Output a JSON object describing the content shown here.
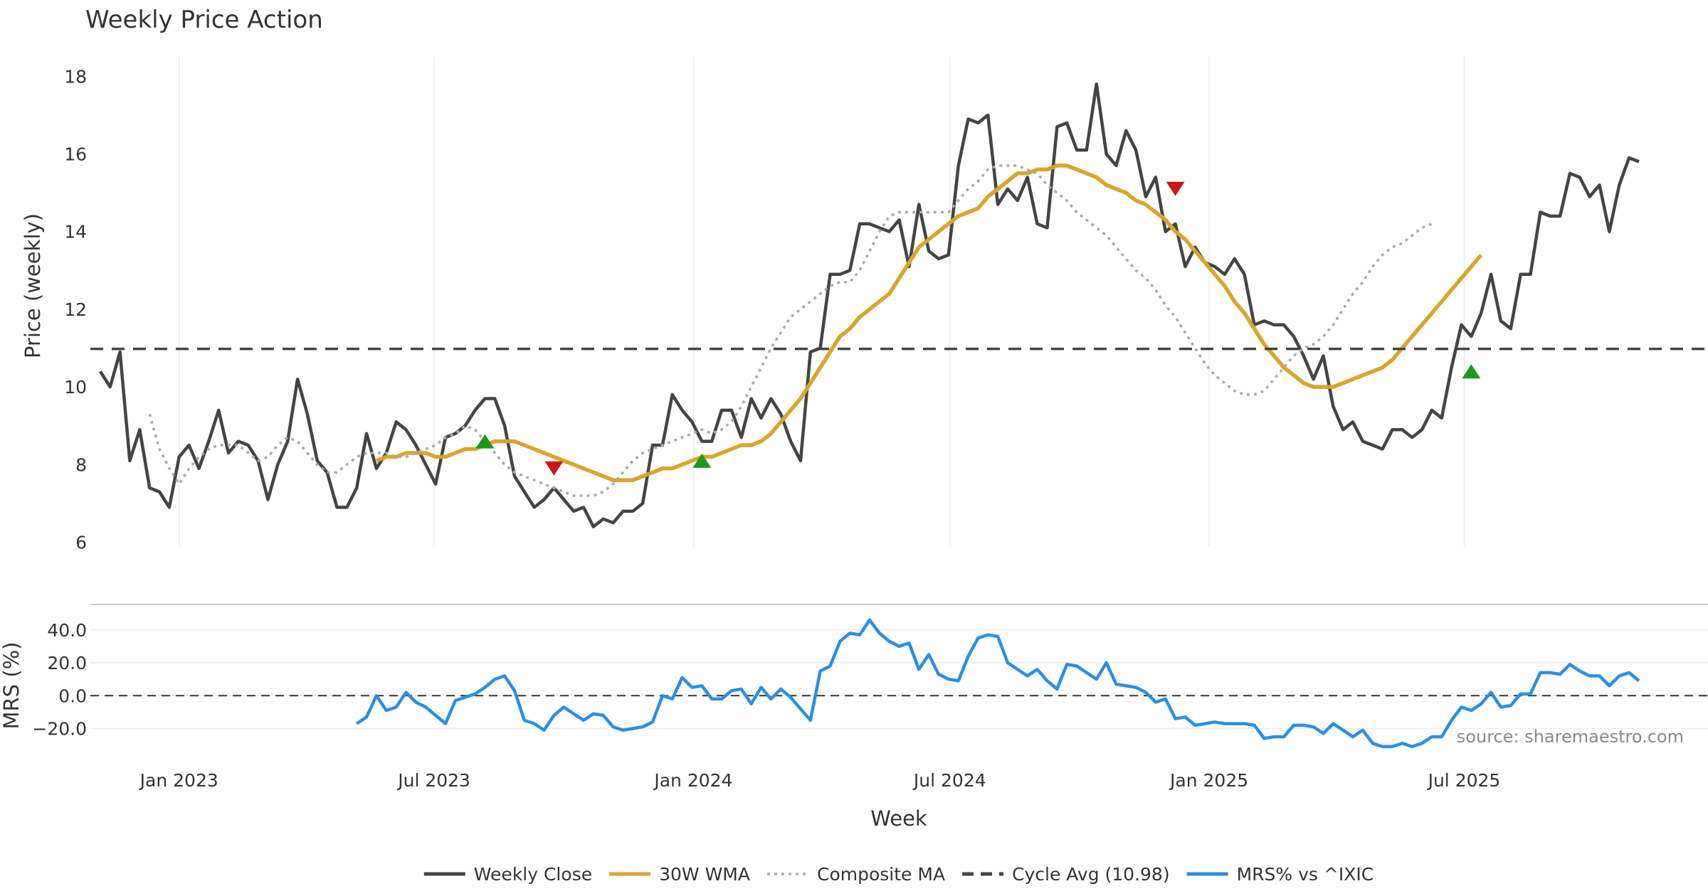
{
  "chart_data": {
    "title": "Weekly Price Action",
    "xlabel": "Week",
    "source": "source: sharemaestro.com",
    "x_ticks": [
      {
        "date": "2023-01-01",
        "label": "Jan 2023"
      },
      {
        "date": "2023-07-01",
        "label": "Jul 2023"
      },
      {
        "date": "2024-01-01",
        "label": "Jan 2024"
      },
      {
        "date": "2024-07-01",
        "label": "Jul 2024"
      },
      {
        "date": "2025-01-01",
        "label": "Jan 2025"
      },
      {
        "date": "2025-07-01",
        "label": "Jul 2025"
      }
    ],
    "x_range": [
      "2022-10-30",
      "2025-12-21"
    ],
    "price_panel": {
      "type": "line",
      "ylabel": "Price (weekly)",
      "ylim": [
        5.9,
        18.5
      ],
      "y_ticks": [
        6,
        8,
        10,
        12,
        14,
        16,
        18
      ],
      "grid": "x",
      "x": [
        "2022-11-06",
        "2022-11-13",
        "2022-11-20",
        "2022-11-27",
        "2022-12-04",
        "2022-12-11",
        "2022-12-18",
        "2022-12-25",
        "2023-01-01",
        "2023-01-08",
        "2023-01-15",
        "2023-01-22",
        "2023-01-29",
        "2023-02-05",
        "2023-02-12",
        "2023-02-19",
        "2023-02-26",
        "2023-03-05",
        "2023-03-12",
        "2023-03-19",
        "2023-03-26",
        "2023-04-02",
        "2023-04-09",
        "2023-04-16",
        "2023-04-23",
        "2023-04-30",
        "2023-05-07",
        "2023-05-14",
        "2023-05-21",
        "2023-05-28",
        "2023-06-04",
        "2023-06-11",
        "2023-06-18",
        "2023-06-25",
        "2023-07-02",
        "2023-07-09",
        "2023-07-16",
        "2023-07-23",
        "2023-07-30",
        "2023-08-06",
        "2023-08-13",
        "2023-08-20",
        "2023-08-27",
        "2023-09-03",
        "2023-09-10",
        "2023-09-17",
        "2023-09-24",
        "2023-10-01",
        "2023-10-08",
        "2023-10-15",
        "2023-10-22",
        "2023-10-29",
        "2023-11-05",
        "2023-11-12",
        "2023-11-19",
        "2023-11-26",
        "2023-12-03",
        "2023-12-10",
        "2023-12-17",
        "2023-12-24",
        "2023-12-31",
        "2024-01-07",
        "2024-01-14",
        "2024-01-21",
        "2024-01-28",
        "2024-02-04",
        "2024-02-11",
        "2024-02-18",
        "2024-02-25",
        "2024-03-03",
        "2024-03-10",
        "2024-03-17",
        "2024-03-24",
        "2024-03-31",
        "2024-04-07",
        "2024-04-14",
        "2024-04-21",
        "2024-04-28",
        "2024-05-05",
        "2024-05-12",
        "2024-05-19",
        "2024-05-26",
        "2024-06-02",
        "2024-06-09",
        "2024-06-16",
        "2024-06-23",
        "2024-06-30",
        "2024-07-07",
        "2024-07-14",
        "2024-07-21",
        "2024-07-28",
        "2024-08-04",
        "2024-08-11",
        "2024-08-18",
        "2024-08-25",
        "2024-09-01",
        "2024-09-08",
        "2024-09-15",
        "2024-09-22",
        "2024-09-29",
        "2024-10-06",
        "2024-10-13",
        "2024-10-20",
        "2024-10-27",
        "2024-11-03",
        "2024-11-10",
        "2024-11-17",
        "2024-11-24",
        "2024-12-01",
        "2024-12-08",
        "2024-12-15",
        "2024-12-22",
        "2024-12-29",
        "2025-01-05",
        "2025-01-12",
        "2025-01-19",
        "2025-01-26",
        "2025-02-02",
        "2025-02-09",
        "2025-02-16",
        "2025-02-23",
        "2025-03-02",
        "2025-03-09",
        "2025-03-16",
        "2025-03-23",
        "2025-03-30",
        "2025-04-06",
        "2025-04-13",
        "2025-04-20",
        "2025-04-27",
        "2025-05-04",
        "2025-05-11",
        "2025-05-18",
        "2025-05-25",
        "2025-06-01",
        "2025-06-08",
        "2025-06-15",
        "2025-06-22",
        "2025-06-29",
        "2025-07-06",
        "2025-07-13",
        "2025-07-20",
        "2025-07-27",
        "2025-08-03",
        "2025-08-10",
        "2025-08-17",
        "2025-08-24",
        "2025-08-31",
        "2025-09-07",
        "2025-09-14",
        "2025-09-21",
        "2025-09-28",
        "2025-10-05",
        "2025-10-12",
        "2025-10-19",
        "2025-10-26",
        "2025-11-02",
        "2025-11-09",
        "2025-11-16",
        "2025-11-23",
        "2025-11-30",
        "2025-12-07",
        "2025-12-14",
        "2025-12-21"
      ],
      "series": [
        {
          "name": "Weekly Close",
          "color": "#444444",
          "style": "solid",
          "values": [
            10.4,
            10.0,
            10.9,
            8.1,
            8.9,
            7.4,
            7.3,
            6.9,
            8.2,
            8.5,
            7.9,
            8.6,
            9.4,
            8.3,
            8.6,
            8.5,
            8.1,
            7.1,
            8.0,
            8.6,
            10.2,
            9.3,
            8.1,
            7.8,
            6.9,
            6.9,
            7.4,
            8.8,
            7.9,
            8.3,
            9.1,
            8.9,
            8.5,
            8.0,
            7.5,
            8.7,
            8.8,
            9.0,
            9.4,
            9.7,
            9.7,
            9.0,
            7.7,
            7.3,
            6.9,
            7.1,
            7.4,
            7.1,
            6.8,
            6.9,
            6.4,
            6.6,
            6.5,
            6.8,
            6.8,
            7.0,
            8.5,
            8.5,
            9.8,
            9.4,
            9.1,
            8.6,
            8.6,
            9.4,
            9.4,
            8.7,
            9.7,
            9.2,
            9.7,
            9.3,
            8.6,
            8.1,
            10.9,
            11.0,
            12.9,
            12.9,
            13.0,
            14.2,
            14.2,
            14.1,
            14.0,
            14.3,
            13.1,
            14.7,
            13.5,
            13.3,
            13.4,
            15.7,
            16.9,
            16.8,
            17.0,
            14.7,
            15.1,
            14.8,
            15.4,
            14.2,
            14.1,
            16.7,
            16.8,
            16.1,
            16.1,
            17.8,
            16.0,
            15.7,
            16.6,
            16.1,
            14.9,
            15.4,
            14.0,
            14.2,
            13.1,
            13.6,
            13.2,
            13.1,
            12.9,
            13.3,
            12.9,
            11.6,
            11.7,
            11.6,
            11.6,
            11.3,
            10.8,
            10.2,
            10.8,
            9.5,
            8.9,
            9.1,
            8.6,
            8.5,
            8.4,
            8.9,
            8.9,
            8.7,
            8.9,
            9.4,
            9.2,
            10.5,
            11.6,
            11.3,
            11.9,
            12.9,
            11.7,
            11.5,
            12.9,
            12.9,
            14.5,
            14.4,
            14.4,
            15.5,
            15.4,
            14.9,
            15.2,
            14.0,
            15.2,
            15.9,
            15.8
          ]
        },
        {
          "name": "30W WMA",
          "color": "#d9a52b",
          "style": "solid",
          "start": "2023-05-21",
          "values": [
            8.1,
            8.2,
            8.2,
            8.3,
            8.3,
            8.3,
            8.2,
            8.2,
            8.3,
            8.4,
            8.4,
            8.5,
            8.6,
            8.6,
            8.6,
            8.5,
            8.4,
            8.3,
            8.2,
            8.1,
            8.0,
            7.9,
            7.8,
            7.7,
            7.6,
            7.6,
            7.6,
            7.7,
            7.8,
            7.9,
            7.9,
            8.0,
            8.1,
            8.2,
            8.2,
            8.3,
            8.4,
            8.5,
            8.5,
            8.6,
            8.8,
            9.1,
            9.4,
            9.7,
            10.1,
            10.5,
            10.9,
            11.3,
            11.5,
            11.8,
            12.0,
            12.2,
            12.4,
            12.8,
            13.2,
            13.6,
            13.8,
            14.0,
            14.2,
            14.4,
            14.5,
            14.6,
            14.9,
            15.1,
            15.3,
            15.5,
            15.5,
            15.6,
            15.6,
            15.7,
            15.7,
            15.6,
            15.5,
            15.4,
            15.2,
            15.1,
            15.0,
            14.8,
            14.7,
            14.5,
            14.3,
            14.0,
            13.8,
            13.5,
            13.2,
            12.9,
            12.6,
            12.2,
            11.9,
            11.5,
            11.1,
            10.8,
            10.5,
            10.3,
            10.1,
            10.0,
            10.0,
            10.0,
            10.1,
            10.2,
            10.3,
            10.4,
            10.5,
            10.7,
            11.0,
            11.3,
            11.6,
            11.9,
            12.2,
            12.5,
            12.8,
            13.1,
            13.4
          ]
        },
        {
          "name": "Composite MA",
          "color": "#aaaaaa",
          "style": "dotted",
          "start": "2022-12-11",
          "values": [
            9.3,
            8.4,
            7.9,
            7.5,
            7.9,
            8.2,
            8.4,
            8.5,
            8.5,
            8.5,
            8.3,
            8.1,
            8.2,
            8.5,
            8.7,
            8.6,
            8.3,
            8.0,
            7.8,
            7.8,
            8.0,
            8.2,
            8.3,
            8.3,
            8.3,
            8.2,
            8.2,
            8.3,
            8.4,
            8.5,
            8.7,
            8.8,
            9.0,
            8.9,
            8.6,
            8.3,
            8.0,
            7.8,
            7.7,
            7.6,
            7.5,
            7.4,
            7.3,
            7.2,
            7.2,
            7.2,
            7.3,
            7.5,
            7.8,
            8.1,
            8.3,
            8.4,
            8.5,
            8.6,
            8.7,
            8.8,
            8.9,
            8.8,
            8.9,
            9.1,
            9.5,
            10.0,
            10.5,
            11.0,
            11.4,
            11.8,
            12.0,
            12.2,
            12.4,
            12.6,
            12.7,
            12.7,
            13.0,
            13.5,
            14.0,
            14.4,
            14.5,
            14.5,
            14.5,
            14.5,
            14.5,
            14.5,
            14.8,
            15.1,
            15.3,
            15.6,
            15.7,
            15.7,
            15.7,
            15.6,
            15.5,
            15.2,
            15.0,
            14.8,
            14.5,
            14.3,
            14.1,
            13.9,
            13.6,
            13.3,
            13.0,
            12.8,
            12.5,
            12.1,
            11.8,
            11.4,
            11.0,
            10.6,
            10.3,
            10.1,
            9.9,
            9.8,
            9.8,
            9.9,
            10.2,
            10.5,
            10.8,
            11.0,
            11.1,
            11.3,
            11.6,
            12.0,
            12.4,
            12.7,
            13.1,
            13.4,
            13.6,
            13.7,
            13.9,
            14.1,
            14.2
          ]
        },
        {
          "name": "Cycle Avg (10.98)",
          "color": "#444444",
          "style": "dashed",
          "value": 10.98
        }
      ],
      "markers": [
        {
          "type": "up",
          "color": "#1a9a1a",
          "date": "2023-08-06",
          "value": 8.6
        },
        {
          "type": "down",
          "color": "#c81818",
          "date": "2023-09-24",
          "value": 7.9
        },
        {
          "type": "up",
          "color": "#1a9a1a",
          "date": "2024-01-07",
          "value": 8.1
        },
        {
          "type": "down",
          "color": "#c81818",
          "date": "2024-12-08",
          "value": 15.1
        },
        {
          "type": "up",
          "color": "#1a9a1a",
          "date": "2025-07-06",
          "value": 10.4
        }
      ]
    },
    "mrs_panel": {
      "type": "line",
      "ylabel": "MRS (%)",
      "ylim": [
        -28,
        52
      ],
      "y_ticks": [
        -20,
        0,
        20,
        40
      ],
      "y_tick_labels": [
        "−20.0",
        "0.0",
        "20.0",
        "40.0"
      ],
      "grid": "y",
      "zero_line": true,
      "series": [
        {
          "name": "MRS% vs ^IXIC",
          "color": "#2b8fe3",
          "start": "2023-05-07",
          "values": [
            -17,
            -13,
            0,
            -9,
            -7,
            2,
            -4,
            -7,
            -12,
            -17,
            -3,
            -1,
            1,
            5,
            10,
            12,
            3,
            -15,
            -17,
            -21,
            -12,
            -7,
            -11,
            -15,
            -11,
            -12,
            -19,
            -21,
            -20,
            -19,
            -16,
            0,
            -2,
            11,
            5,
            6,
            -2,
            -2,
            3,
            4,
            -5,
            5,
            -2,
            4,
            -1,
            -8,
            -15,
            15,
            18,
            33,
            38,
            37,
            46,
            38,
            33,
            30,
            32,
            16,
            25,
            13,
            10,
            9,
            24,
            35,
            37,
            36,
            20,
            16,
            12,
            16,
            9,
            4,
            19,
            18,
            14,
            10,
            20,
            7,
            6,
            5,
            2,
            -4,
            -2,
            -14,
            -13,
            -18,
            -17,
            -16,
            -17,
            -17,
            -17,
            -18,
            -26,
            -25,
            -25,
            -18,
            -18,
            -19,
            -23,
            -17,
            -21,
            -25,
            -21,
            -29,
            -31,
            -31,
            -29,
            -31,
            -29,
            -25,
            -25,
            -15,
            -7,
            -9,
            -5,
            2,
            -7,
            -6,
            1,
            1,
            14,
            14,
            13,
            19,
            15,
            12,
            12,
            6,
            12,
            14,
            9
          ]
        }
      ]
    },
    "legend": {
      "position": "bottom-center",
      "entries": [
        {
          "label": "Weekly Close",
          "color": "#444444",
          "style": "solid"
        },
        {
          "label": "30W WMA",
          "color": "#d9a52b",
          "style": "solid"
        },
        {
          "label": "Composite MA",
          "color": "#aaaaaa",
          "style": "dotted"
        },
        {
          "label": "Cycle Avg (10.98)",
          "color": "#444444",
          "style": "dashed"
        },
        {
          "label": "MRS% vs ^IXIC",
          "color": "#2b8fe3",
          "style": "solid"
        }
      ]
    }
  }
}
